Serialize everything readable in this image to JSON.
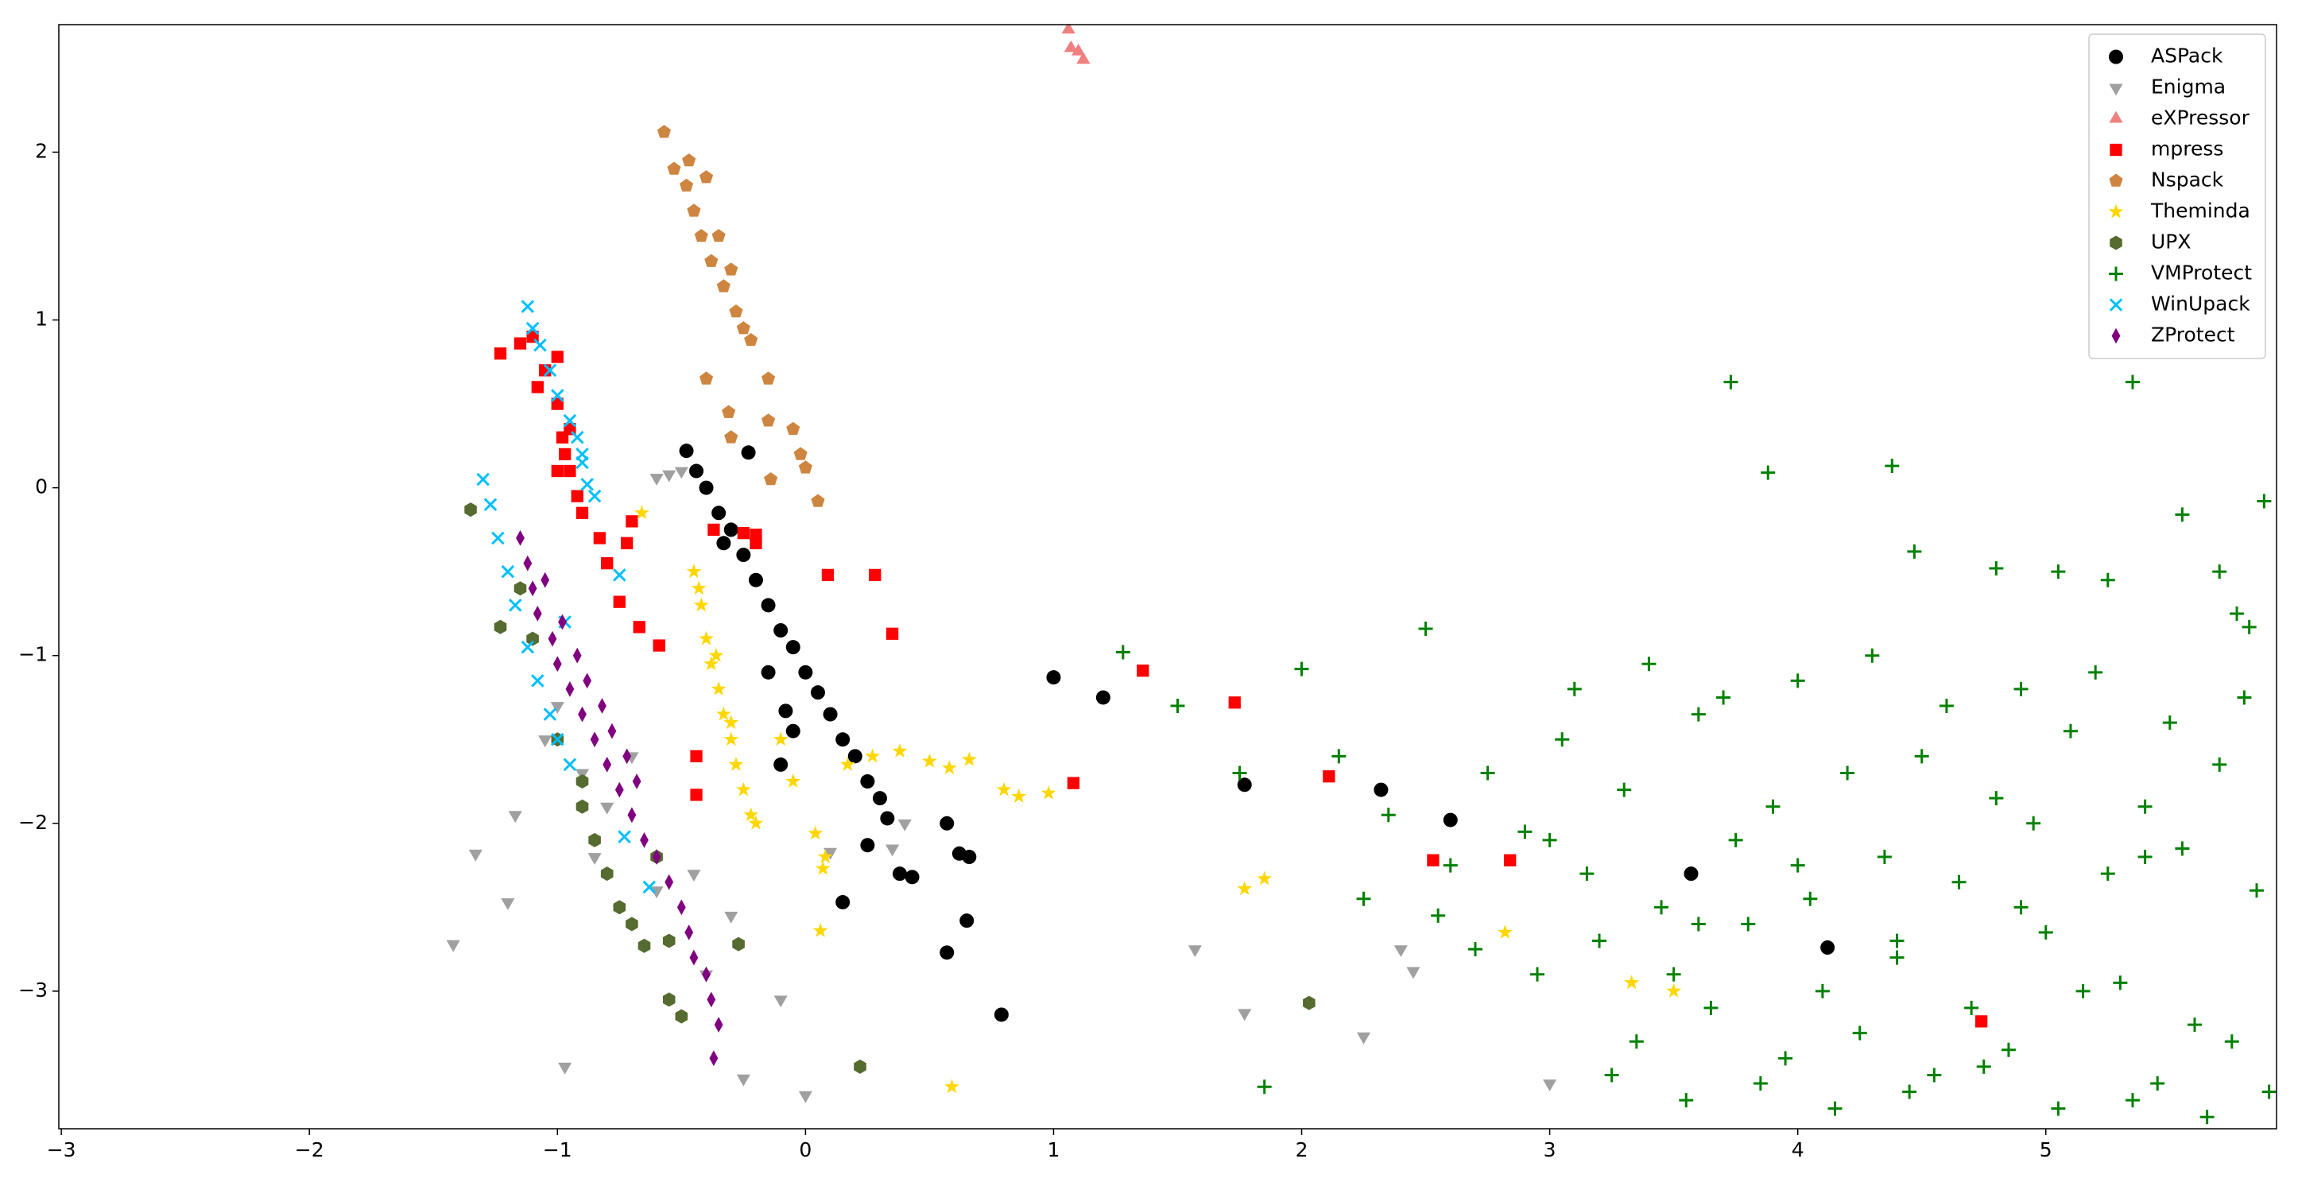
{
  "chart_data": {
    "type": "scatter",
    "xlim": [
      -3.01,
      5.93
    ],
    "ylim": [
      -3.82,
      2.76
    ],
    "xticks": [
      {
        "value": -3,
        "label": "−3"
      },
      {
        "value": -2,
        "label": "−2"
      },
      {
        "value": -1,
        "label": "−1"
      },
      0,
      1,
      2,
      3,
      4,
      5
    ],
    "yticks": [
      {
        "value": -3,
        "label": "−3"
      },
      {
        "value": -2,
        "label": "−2"
      },
      {
        "value": -1,
        "label": "−1"
      },
      0,
      1,
      2
    ],
    "grid": false,
    "legend": "upper right",
    "series": [
      {
        "name": "ASPack",
        "color": "#000000",
        "marker": "circle",
        "x": [
          -0.48,
          -0.44,
          -0.4,
          -0.35,
          -0.3,
          -0.25,
          -0.2,
          -0.15,
          -0.1,
          -0.05,
          0.0,
          0.05,
          0.1,
          0.15,
          0.2,
          0.25,
          0.3,
          0.33,
          1.0,
          1.2,
          1.77,
          2.32,
          2.6,
          3.57,
          4.12,
          0.79,
          0.57,
          0.65,
          0.15,
          0.57,
          0.62,
          0.66,
          0.38,
          0.43,
          0.25,
          -0.23,
          -0.05,
          -0.08,
          -0.1,
          -0.15,
          -0.33
        ],
        "values": [
          0.22,
          0.1,
          0.0,
          -0.15,
          -0.25,
          -0.4,
          -0.55,
          -0.7,
          -0.85,
          -0.95,
          -1.1,
          -1.22,
          -1.35,
          -1.5,
          -1.6,
          -1.75,
          -1.85,
          -1.97,
          -1.13,
          -1.25,
          -1.77,
          -1.8,
          -1.98,
          -2.3,
          -2.74,
          -3.14,
          -2.77,
          -2.58,
          -2.47,
          -2.0,
          -2.18,
          -2.2,
          -2.3,
          -2.32,
          -2.13,
          0.21,
          -1.45,
          -1.33,
          -1.65,
          -1.1,
          -0.33
        ]
      },
      {
        "name": "Enigma",
        "color": "#a0a0a0",
        "marker": "triangle-down",
        "x": [
          -1.42,
          -1.33,
          -1.2,
          -1.17,
          -0.97,
          -0.55,
          -0.6,
          -0.5,
          0.0,
          -0.1,
          -0.25,
          0.1,
          0.35,
          0.4,
          1.57,
          1.77,
          2.25,
          2.4,
          2.45,
          3.0,
          -0.3,
          -0.4,
          -0.8,
          -0.9,
          -1.05,
          -1.0,
          -0.85,
          -0.6,
          -0.45,
          -0.7
        ],
        "values": [
          -2.72,
          -2.18,
          -2.47,
          -1.95,
          -3.45,
          0.08,
          0.06,
          0.1,
          -3.62,
          -3.05,
          -3.52,
          -2.17,
          -2.15,
          -2.0,
          -2.75,
          -3.13,
          -3.27,
          -2.75,
          -2.88,
          -3.55,
          -2.55,
          -2.9,
          -1.9,
          -1.7,
          -1.5,
          -1.3,
          -2.2,
          -2.4,
          -2.3,
          -1.6
        ]
      },
      {
        "name": "eXPressor",
        "color": "#f08080",
        "marker": "triangle-up",
        "x": [
          1.06,
          1.07,
          1.1,
          1.12
        ],
        "values": [
          2.73,
          2.62,
          2.6,
          2.55
        ]
      },
      {
        "name": "mpress",
        "color": "#ff0000",
        "marker": "square",
        "x": [
          -1.23,
          -1.15,
          -1.0,
          -0.83,
          -0.8,
          -0.7,
          -0.72,
          -0.75,
          -0.67,
          -0.59,
          -0.44,
          -0.44,
          -0.37,
          -0.25,
          -0.2,
          -0.2,
          0.09,
          0.28,
          0.35,
          1.08,
          1.36,
          1.73,
          2.11,
          2.53,
          2.84,
          4.74,
          -1.1,
          -1.05,
          -1.0,
          -0.98,
          -1.0,
          -0.95,
          -0.92,
          -0.9,
          -1.08,
          -0.95,
          -0.97
        ],
        "values": [
          0.8,
          0.86,
          0.78,
          -0.3,
          -0.45,
          -0.2,
          -0.33,
          -0.68,
          -0.83,
          -0.94,
          -1.6,
          -1.83,
          -0.25,
          -0.27,
          -0.33,
          -0.28,
          -0.52,
          -0.52,
          -0.87,
          -1.76,
          -1.09,
          -1.28,
          -1.72,
          -2.22,
          -2.22,
          -3.18,
          0.9,
          0.7,
          0.5,
          0.3,
          0.1,
          0.1,
          -0.05,
          -0.15,
          0.6,
          0.35,
          0.2
        ]
      },
      {
        "name": "Nspack",
        "color": "#cd853f",
        "marker": "pentagon",
        "x": [
          -0.57,
          -0.53,
          -0.48,
          -0.45,
          -0.42,
          -0.38,
          -0.33,
          -0.28,
          -0.22,
          -0.47,
          -0.4,
          -0.35,
          -0.3,
          -0.25,
          -0.4,
          -0.31,
          -0.15,
          -0.15,
          -0.14,
          -0.05,
          -0.02,
          0.0,
          0.05,
          -0.3
        ],
        "values": [
          2.12,
          1.9,
          1.8,
          1.65,
          1.5,
          1.35,
          1.2,
          1.05,
          0.88,
          1.95,
          1.85,
          1.5,
          1.3,
          0.95,
          0.65,
          0.45,
          0.65,
          0.4,
          0.05,
          0.35,
          0.2,
          0.12,
          -0.08,
          0.3
        ]
      },
      {
        "name": "Theminda",
        "color": "#ffd700",
        "marker": "star",
        "x": [
          -0.45,
          -0.42,
          -0.4,
          -0.38,
          -0.35,
          -0.33,
          -0.3,
          -0.28,
          -0.25,
          -0.22,
          -0.2,
          -0.43,
          -0.36,
          -0.3,
          -0.66,
          0.08,
          0.04,
          0.07,
          0.17,
          0.27,
          0.38,
          0.5,
          0.58,
          0.66,
          0.8,
          0.86,
          0.98,
          0.06,
          0.59,
          1.77,
          1.85,
          2.82,
          3.33,
          3.5,
          -0.05,
          -0.1
        ],
        "values": [
          -0.5,
          -0.7,
          -0.9,
          -1.05,
          -1.2,
          -1.35,
          -1.5,
          -1.65,
          -1.8,
          -1.95,
          -2.0,
          -0.6,
          -1.0,
          -1.4,
          -0.15,
          -2.2,
          -2.06,
          -2.27,
          -1.65,
          -1.6,
          -1.57,
          -1.63,
          -1.67,
          -1.62,
          -1.8,
          -1.84,
          -1.82,
          -2.64,
          -3.57,
          -2.39,
          -2.33,
          -2.65,
          -2.95,
          -3.0,
          -1.75,
          -1.5
        ]
      },
      {
        "name": "UPX",
        "color": "#556b2f",
        "marker": "hexagon",
        "x": [
          -1.35,
          -1.23,
          -1.0,
          -0.9,
          -0.8,
          -0.75,
          -0.7,
          -0.65,
          -0.55,
          -0.55,
          -0.5,
          -0.27,
          0.22,
          2.03,
          -0.85,
          -0.9,
          -1.1,
          -1.15,
          -0.6
        ],
        "values": [
          -0.13,
          -0.83,
          -1.5,
          -1.9,
          -2.3,
          -2.5,
          -2.6,
          -2.73,
          -2.7,
          -3.05,
          -3.15,
          -2.72,
          -3.45,
          -3.07,
          -2.1,
          -1.75,
          -0.9,
          -0.6,
          -2.2
        ]
      },
      {
        "name": "VMProtect",
        "color": "#008000",
        "marker": "plus",
        "x": [
          3.73,
          3.88,
          4.38,
          5.35,
          5.55,
          5.88,
          5.7,
          5.82,
          5.77,
          5.05,
          4.8,
          4.47,
          5.25,
          2.5,
          1.28,
          2.0,
          1.5,
          1.75,
          2.15,
          2.35,
          2.6,
          2.75,
          2.9,
          3.05,
          3.15,
          3.3,
          3.45,
          3.6,
          3.75,
          3.9,
          4.05,
          4.2,
          4.35,
          4.5,
          4.65,
          4.8,
          4.95,
          5.1,
          5.25,
          5.4,
          5.55,
          5.7,
          5.85,
          3.2,
          3.5,
          3.8,
          4.1,
          4.4,
          4.7,
          5.0,
          5.3,
          5.6,
          3.35,
          3.65,
          3.95,
          4.25,
          4.55,
          4.85,
          5.15,
          5.45,
          5.75,
          3.1,
          3.4,
          3.7,
          4.0,
          4.3,
          4.6,
          4.9,
          5.2,
          5.5,
          5.8,
          2.7,
          2.95,
          3.25,
          3.55,
          3.85,
          4.15,
          4.45,
          4.75,
          5.05,
          5.35,
          5.65,
          1.85,
          2.25,
          2.55,
          3.0,
          3.6,
          4.0,
          4.4,
          4.9,
          5.4,
          5.9
        ],
        "values": [
          0.63,
          0.09,
          0.13,
          0.63,
          -0.16,
          -0.08,
          -0.5,
          -0.83,
          -0.75,
          -0.5,
          -0.48,
          -0.38,
          -0.55,
          -0.84,
          -0.98,
          -1.08,
          -1.3,
          -1.7,
          -1.6,
          -1.95,
          -2.25,
          -1.7,
          -2.05,
          -1.5,
          -2.3,
          -1.8,
          -2.5,
          -1.35,
          -2.1,
          -1.9,
          -2.45,
          -1.7,
          -2.2,
          -1.6,
          -2.35,
          -1.85,
          -2.0,
          -1.45,
          -2.3,
          -1.9,
          -2.15,
          -1.65,
          -2.4,
          -2.7,
          -2.9,
          -2.6,
          -3.0,
          -2.8,
          -3.1,
          -2.65,
          -2.95,
          -3.2,
          -3.3,
          -3.1,
          -3.4,
          -3.25,
          -3.5,
          -3.35,
          -3.0,
          -3.55,
          -3.3,
          -1.2,
          -1.05,
          -1.25,
          -1.15,
          -1.0,
          -1.3,
          -1.2,
          -1.1,
          -1.4,
          -1.25,
          -2.75,
          -2.9,
          -3.5,
          -3.65,
          -3.55,
          -3.7,
          -3.6,
          -3.45,
          -3.7,
          -3.65,
          -3.75,
          -3.57,
          -2.45,
          -2.55,
          -2.1,
          -2.6,
          -2.25,
          -2.7,
          -2.5,
          -2.2,
          -3.6
        ]
      },
      {
        "name": "WinUpack",
        "color": "#00bfff",
        "marker": "x",
        "x": [
          -1.12,
          -1.1,
          -1.07,
          -1.03,
          -1.0,
          -0.95,
          -0.92,
          -0.9,
          -0.88,
          -0.9,
          -0.85,
          -1.3,
          -1.27,
          -1.24,
          -1.2,
          -1.17,
          -1.12,
          -1.08,
          -1.03,
          -1.0,
          -0.95,
          -0.75,
          -0.73,
          -0.63,
          -0.97
        ],
        "values": [
          1.08,
          0.95,
          0.85,
          0.7,
          0.55,
          0.4,
          0.3,
          0.15,
          0.02,
          0.2,
          -0.05,
          0.05,
          -0.1,
          -0.3,
          -0.5,
          -0.7,
          -0.95,
          -1.15,
          -1.35,
          -1.5,
          -1.65,
          -0.52,
          -2.08,
          -2.38,
          -0.8
        ]
      },
      {
        "name": "ZProtect",
        "color": "#800080",
        "marker": "diamond",
        "x": [
          -1.15,
          -1.12,
          -1.1,
          -1.08,
          -1.05,
          -1.02,
          -1.0,
          -0.98,
          -0.95,
          -0.92,
          -0.9,
          -0.88,
          -0.85,
          -0.82,
          -0.8,
          -0.78,
          -0.75,
          -0.72,
          -0.7,
          -0.68,
          -0.65,
          -0.6,
          -0.55,
          -0.5,
          -0.47,
          -0.45,
          -0.4,
          -0.38,
          -0.35,
          -0.37
        ],
        "values": [
          -0.3,
          -0.45,
          -0.6,
          -0.75,
          -0.55,
          -0.9,
          -1.05,
          -0.8,
          -1.2,
          -1.0,
          -1.35,
          -1.15,
          -1.5,
          -1.3,
          -1.65,
          -1.45,
          -1.8,
          -1.6,
          -1.95,
          -1.75,
          -2.1,
          -2.2,
          -2.35,
          -2.5,
          -2.65,
          -2.8,
          -2.9,
          -3.05,
          -3.2,
          -3.4
        ]
      }
    ]
  }
}
